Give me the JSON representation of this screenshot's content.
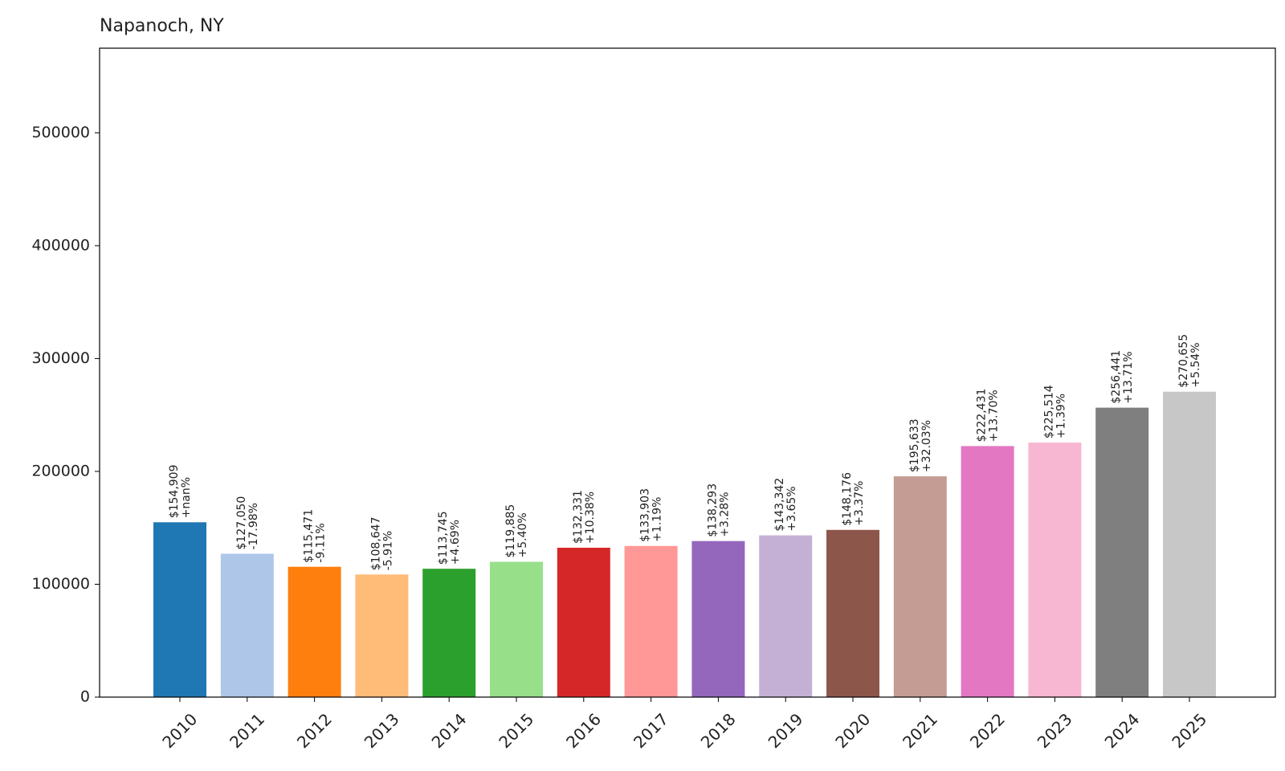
{
  "chart_data": {
    "type": "bar",
    "title": "Napanoch, NY",
    "xlabel": "",
    "ylabel": "",
    "ylim": [
      0,
      575000
    ],
    "yticks": [
      0,
      100000,
      200000,
      300000,
      400000,
      500000
    ],
    "ytick_labels": [
      "0",
      "100000",
      "200000",
      "300000",
      "400000",
      "500000"
    ],
    "categories": [
      "2010",
      "2011",
      "2012",
      "2013",
      "2014",
      "2015",
      "2016",
      "2017",
      "2018",
      "2019",
      "2020",
      "2021",
      "2022",
      "2023",
      "2024",
      "2025"
    ],
    "values": [
      154909,
      127050,
      115471,
      108647,
      113745,
      119885,
      132331,
      133903,
      138293,
      143342,
      148176,
      195633,
      222431,
      225514,
      256441,
      270655
    ],
    "value_labels": [
      "$154,909",
      "$127,050",
      "$115,471",
      "$108,647",
      "$113,745",
      "$119,885",
      "$132,331",
      "$133,903",
      "$138,293",
      "$143,342",
      "$148,176",
      "$195,633",
      "$222,431",
      "$225,514",
      "$256,441",
      "$270,655"
    ],
    "change_labels": [
      "+nan%",
      "-17.98%",
      "-9.11%",
      "-5.91%",
      "+4.69%",
      "+5.40%",
      "+10.38%",
      "+1.19%",
      "+3.28%",
      "+3.65%",
      "+3.37%",
      "+32.03%",
      "+13.70%",
      "+1.39%",
      "+13.71%",
      "+5.54%"
    ],
    "colors": [
      "#1f77b4",
      "#aec7e8",
      "#ff7f0e",
      "#ffbb78",
      "#2ca02c",
      "#98df8a",
      "#d62728",
      "#ff9896",
      "#9467bd",
      "#c5b0d5",
      "#8c564b",
      "#c49c94",
      "#e377c2",
      "#f7b6d2",
      "#7f7f7f",
      "#c7c7c7"
    ],
    "grid": false,
    "legend": "none"
  }
}
